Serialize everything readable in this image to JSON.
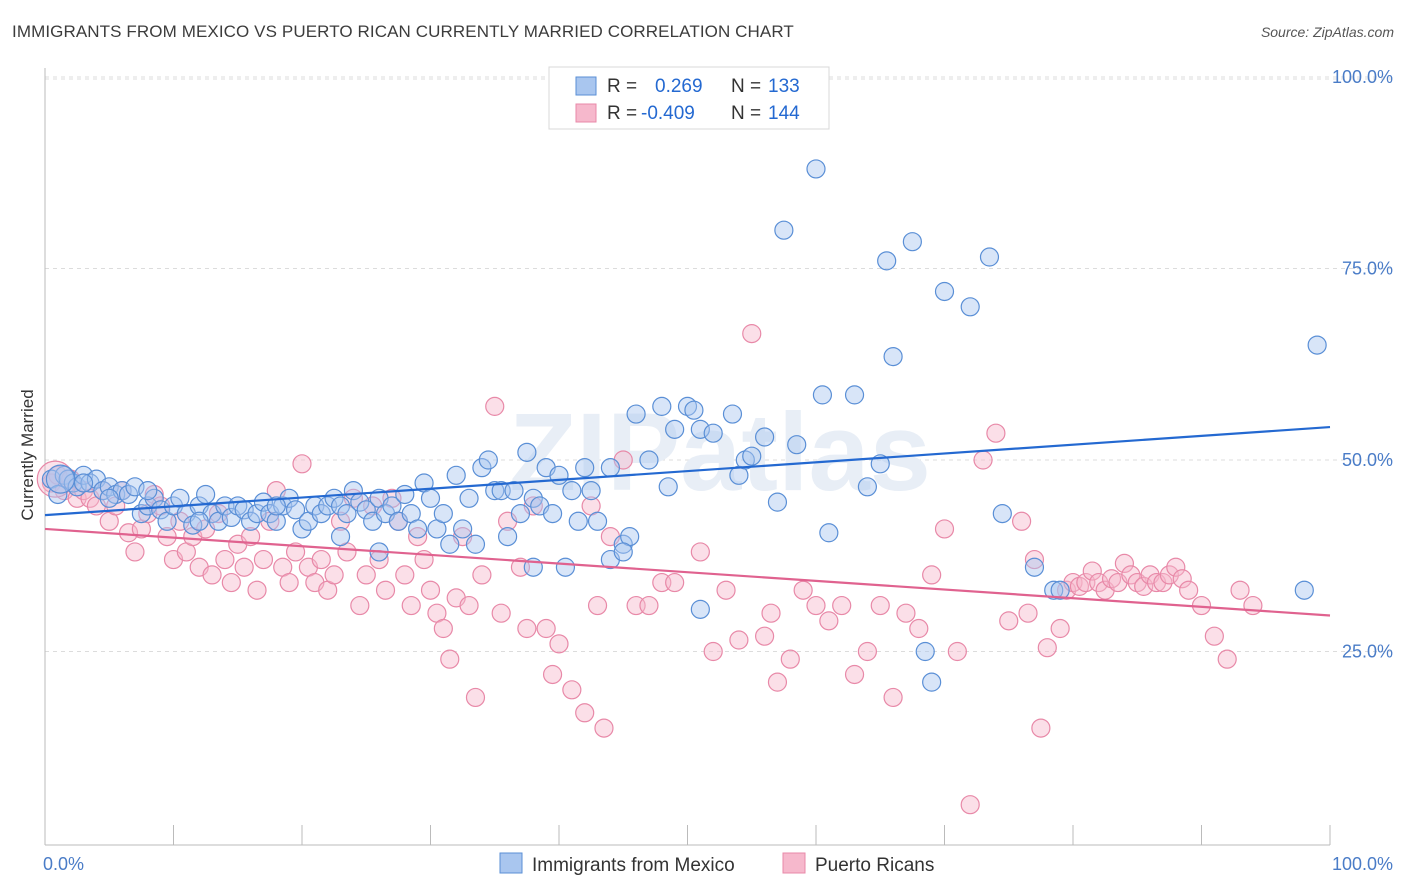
{
  "title": "IMMIGRANTS FROM MEXICO VS PUERTO RICAN CURRENTLY MARRIED CORRELATION CHART",
  "source": "Source: ZipAtlas.com",
  "watermark": "ZIPatlas",
  "colors": {
    "blue_fill": "#a9c6ef",
    "blue_stroke": "#5a8fd6",
    "blue_line": "#2469d1",
    "pink_fill": "#f6b8cc",
    "pink_stroke": "#e889a8",
    "pink_line": "#e0628f",
    "tick": "#4a7cc7",
    "grid": "#dcdcdc"
  },
  "legend": {
    "r_label": "R =",
    "n_label": "N =",
    "blue": {
      "r": "0.269",
      "n": "133"
    },
    "pink": {
      "r": "-0.409",
      "n": "144"
    }
  },
  "chart_data": {
    "type": "scatter",
    "xlabel": "",
    "ylabel": "Currently Married",
    "x_tick_labels": [
      "0.0%",
      "100.0%"
    ],
    "y_tick_labels": [
      "100.0%",
      "75.0%",
      "50.0%",
      "25.0%"
    ],
    "y_tick_values": [
      100,
      75,
      50,
      25
    ],
    "xlim": [
      0,
      100
    ],
    "ylim": [
      0,
      100
    ],
    "grid": "horizontal dashed",
    "legend_position": "top-center",
    "series": [
      {
        "name": "Immigrants from Mexico",
        "trend": {
          "x": [
            0,
            100
          ],
          "y": [
            42.8,
            54.3
          ]
        },
        "points": [
          [
            0.5,
            47.5
          ],
          [
            1.0,
            45.5
          ],
          [
            1.5,
            48
          ],
          [
            1.8,
            47.5
          ],
          [
            2.2,
            47
          ],
          [
            2.5,
            46.5
          ],
          [
            3.0,
            48
          ],
          [
            3.5,
            47
          ],
          [
            4.0,
            47.5
          ],
          [
            4.5,
            46
          ],
          [
            5.0,
            46.5
          ],
          [
            5.5,
            45.5
          ],
          [
            6.0,
            46
          ],
          [
            6.5,
            45.5
          ],
          [
            7.0,
            46.5
          ],
          [
            7.5,
            43
          ],
          [
            8.0,
            44
          ],
          [
            8.5,
            45
          ],
          [
            9.0,
            43.5
          ],
          [
            9.5,
            42
          ],
          [
            10.0,
            44
          ],
          [
            10.5,
            45
          ],
          [
            11.0,
            43
          ],
          [
            11.5,
            41.5
          ],
          [
            12.0,
            44
          ],
          [
            12.5,
            45.5
          ],
          [
            13.0,
            43
          ],
          [
            13.5,
            42
          ],
          [
            14.0,
            44
          ],
          [
            14.5,
            42.5
          ],
          [
            15.0,
            44
          ],
          [
            15.5,
            43.5
          ],
          [
            16.0,
            42
          ],
          [
            16.5,
            43
          ],
          [
            17.0,
            44.5
          ],
          [
            17.5,
            43
          ],
          [
            18.0,
            42
          ],
          [
            18.5,
            44
          ],
          [
            19.0,
            45
          ],
          [
            19.5,
            43.5
          ],
          [
            20.0,
            41
          ],
          [
            20.5,
            42
          ],
          [
            21.0,
            44
          ],
          [
            21.5,
            43
          ],
          [
            22.0,
            44
          ],
          [
            22.5,
            45
          ],
          [
            23.0,
            44
          ],
          [
            23.5,
            43
          ],
          [
            24.0,
            46
          ],
          [
            24.5,
            44.5
          ],
          [
            25.0,
            43.5
          ],
          [
            25.5,
            42
          ],
          [
            26.0,
            45
          ],
          [
            26.5,
            43
          ],
          [
            27.0,
            44
          ],
          [
            27.5,
            42
          ],
          [
            28.0,
            45.5
          ],
          [
            28.5,
            43
          ],
          [
            29.0,
            41
          ],
          [
            29.5,
            47
          ],
          [
            30.0,
            45
          ],
          [
            30.5,
            41
          ],
          [
            31.0,
            43
          ],
          [
            31.5,
            39
          ],
          [
            32.0,
            48
          ],
          [
            32.5,
            41
          ],
          [
            33.0,
            45
          ],
          [
            33.5,
            39
          ],
          [
            34.0,
            49
          ],
          [
            34.5,
            50
          ],
          [
            35.0,
            46
          ],
          [
            35.5,
            46
          ],
          [
            36.0,
            40
          ],
          [
            36.5,
            46
          ],
          [
            37.0,
            43
          ],
          [
            37.5,
            51
          ],
          [
            38.0,
            45
          ],
          [
            38.5,
            44
          ],
          [
            39.0,
            49
          ],
          [
            39.5,
            43
          ],
          [
            40.0,
            48
          ],
          [
            40.5,
            36
          ],
          [
            41.0,
            46
          ],
          [
            41.5,
            42
          ],
          [
            42.0,
            49
          ],
          [
            42.5,
            46
          ],
          [
            43.0,
            42
          ],
          [
            44.0,
            49
          ],
          [
            45.0,
            39
          ],
          [
            45.5,
            40
          ],
          [
            46.0,
            56
          ],
          [
            47.0,
            50
          ],
          [
            48.0,
            57
          ],
          [
            48.5,
            46.5
          ],
          [
            49.0,
            54
          ],
          [
            50.0,
            57
          ],
          [
            50.5,
            56.5
          ],
          [
            51.0,
            54
          ],
          [
            52.0,
            53.5
          ],
          [
            53.5,
            56
          ],
          [
            54.0,
            48
          ],
          [
            54.5,
            50
          ],
          [
            55.0,
            50.5
          ],
          [
            56.0,
            53
          ],
          [
            57.0,
            44.5
          ],
          [
            57.5,
            80
          ],
          [
            58.5,
            52
          ],
          [
            60.0,
            88
          ],
          [
            60.5,
            58.5
          ],
          [
            61.0,
            40.5
          ],
          [
            63.0,
            58.5
          ],
          [
            64.0,
            46.5
          ],
          [
            65.5,
            76
          ],
          [
            65.0,
            49.5
          ],
          [
            66.0,
            63.5
          ],
          [
            67.5,
            78.5
          ],
          [
            68.5,
            25
          ],
          [
            69.0,
            21
          ],
          [
            70.0,
            72
          ],
          [
            72.0,
            70
          ],
          [
            73.5,
            76.5
          ],
          [
            74.5,
            43
          ],
          [
            77.0,
            36
          ],
          [
            78.5,
            33
          ],
          [
            79.0,
            33
          ],
          [
            51.0,
            30.5
          ],
          [
            44.0,
            37
          ],
          [
            38.0,
            36
          ],
          [
            26.0,
            38
          ],
          [
            23.0,
            40
          ],
          [
            18.0,
            44
          ],
          [
            12.0,
            42
          ],
          [
            8.0,
            46
          ],
          [
            5.0,
            45
          ],
          [
            3.0,
            47
          ],
          [
            98.0,
            33
          ],
          [
            99.0,
            65
          ],
          [
            45.0,
            38
          ]
        ]
      },
      {
        "name": "Puerto Ricans",
        "trend": {
          "x": [
            0,
            100
          ],
          "y": [
            41.0,
            29.7
          ]
        },
        "points": [
          [
            0.5,
            47
          ],
          [
            1.0,
            48
          ],
          [
            1.5,
            46
          ],
          [
            2.0,
            47.5
          ],
          [
            2.5,
            45
          ],
          [
            3.0,
            46
          ],
          [
            3.5,
            45
          ],
          [
            4.0,
            44
          ],
          [
            4.5,
            46
          ],
          [
            5.0,
            42
          ],
          [
            5.5,
            44
          ],
          [
            6.0,
            46
          ],
          [
            6.5,
            40.5
          ],
          [
            7.0,
            38
          ],
          [
            7.5,
            41
          ],
          [
            8.0,
            43
          ],
          [
            8.5,
            45.5
          ],
          [
            9.0,
            44
          ],
          [
            9.5,
            40
          ],
          [
            10.0,
            37
          ],
          [
            10.5,
            42
          ],
          [
            11.0,
            38
          ],
          [
            11.5,
            40
          ],
          [
            12.0,
            36
          ],
          [
            12.5,
            41
          ],
          [
            13.0,
            35
          ],
          [
            13.5,
            43
          ],
          [
            14.0,
            37
          ],
          [
            14.5,
            34
          ],
          [
            15.0,
            39
          ],
          [
            15.5,
            36
          ],
          [
            16.0,
            40
          ],
          [
            16.5,
            33
          ],
          [
            17.0,
            37
          ],
          [
            17.5,
            42
          ],
          [
            18.0,
            46
          ],
          [
            18.5,
            36
          ],
          [
            19.0,
            34
          ],
          [
            19.5,
            38
          ],
          [
            20.0,
            49.5
          ],
          [
            20.5,
            36
          ],
          [
            21.0,
            34
          ],
          [
            21.5,
            37
          ],
          [
            22.0,
            33
          ],
          [
            22.5,
            35
          ],
          [
            23.0,
            42
          ],
          [
            23.5,
            38
          ],
          [
            24.0,
            45
          ],
          [
            24.5,
            31
          ],
          [
            25.0,
            35
          ],
          [
            25.5,
            44
          ],
          [
            26.0,
            37
          ],
          [
            26.5,
            33
          ],
          [
            27.0,
            45
          ],
          [
            27.5,
            42
          ],
          [
            28.0,
            35
          ],
          [
            28.5,
            31
          ],
          [
            29.0,
            40
          ],
          [
            29.5,
            37
          ],
          [
            30.0,
            33
          ],
          [
            30.5,
            30
          ],
          [
            31.0,
            28
          ],
          [
            31.5,
            24
          ],
          [
            32.0,
            32
          ],
          [
            32.5,
            40
          ],
          [
            33.0,
            31
          ],
          [
            33.5,
            19
          ],
          [
            34.0,
            35
          ],
          [
            35.0,
            57
          ],
          [
            35.5,
            30
          ],
          [
            36.0,
            42
          ],
          [
            37.0,
            36
          ],
          [
            37.5,
            28
          ],
          [
            38.0,
            44
          ],
          [
            39.0,
            28
          ],
          [
            39.5,
            22
          ],
          [
            40.0,
            26
          ],
          [
            41.0,
            20
          ],
          [
            42.0,
            17
          ],
          [
            42.5,
            44
          ],
          [
            43.0,
            31
          ],
          [
            43.5,
            15
          ],
          [
            44.0,
            40
          ],
          [
            45.0,
            50
          ],
          [
            46.0,
            31
          ],
          [
            47.0,
            31
          ],
          [
            48.0,
            34
          ],
          [
            49.0,
            34
          ],
          [
            51.0,
            38
          ],
          [
            52.0,
            25
          ],
          [
            53.0,
            33
          ],
          [
            54.0,
            26.5
          ],
          [
            55.0,
            66.5
          ],
          [
            56.0,
            27
          ],
          [
            56.5,
            30
          ],
          [
            57.0,
            21
          ],
          [
            58.0,
            24
          ],
          [
            59.0,
            33
          ],
          [
            60.0,
            31
          ],
          [
            61.0,
            29
          ],
          [
            62.0,
            31
          ],
          [
            63.0,
            22
          ],
          [
            64.0,
            25
          ],
          [
            65.0,
            31
          ],
          [
            66.0,
            19
          ],
          [
            67.0,
            30
          ],
          [
            68.0,
            28
          ],
          [
            69.0,
            35
          ],
          [
            70.0,
            41
          ],
          [
            71.0,
            25
          ],
          [
            72.0,
            5
          ],
          [
            73.0,
            50
          ],
          [
            74.0,
            53.5
          ],
          [
            75.0,
            29
          ],
          [
            76.0,
            42
          ],
          [
            76.5,
            30
          ],
          [
            77.0,
            37
          ],
          [
            77.5,
            15
          ],
          [
            78.0,
            25.5
          ],
          [
            79.0,
            28
          ],
          [
            79.5,
            33
          ],
          [
            80.0,
            34
          ],
          [
            80.5,
            33.5
          ],
          [
            81.0,
            34
          ],
          [
            81.5,
            35.5
          ],
          [
            82.0,
            34
          ],
          [
            82.5,
            33
          ],
          [
            83.0,
            34.5
          ],
          [
            83.5,
            34
          ],
          [
            84.0,
            36.5
          ],
          [
            84.5,
            35
          ],
          [
            85.0,
            34
          ],
          [
            85.5,
            33.5
          ],
          [
            86.0,
            35
          ],
          [
            86.5,
            34
          ],
          [
            87.0,
            34
          ],
          [
            87.5,
            35
          ],
          [
            88.0,
            36
          ],
          [
            88.5,
            34.5
          ],
          [
            89.0,
            33
          ],
          [
            90.0,
            31
          ],
          [
            91.0,
            27
          ],
          [
            92.0,
            24
          ],
          [
            93.0,
            33
          ],
          [
            94.0,
            31
          ]
        ]
      }
    ]
  },
  "bottom_legend": [
    {
      "label": "Immigrants from Mexico"
    },
    {
      "label": "Puerto Ricans"
    }
  ]
}
